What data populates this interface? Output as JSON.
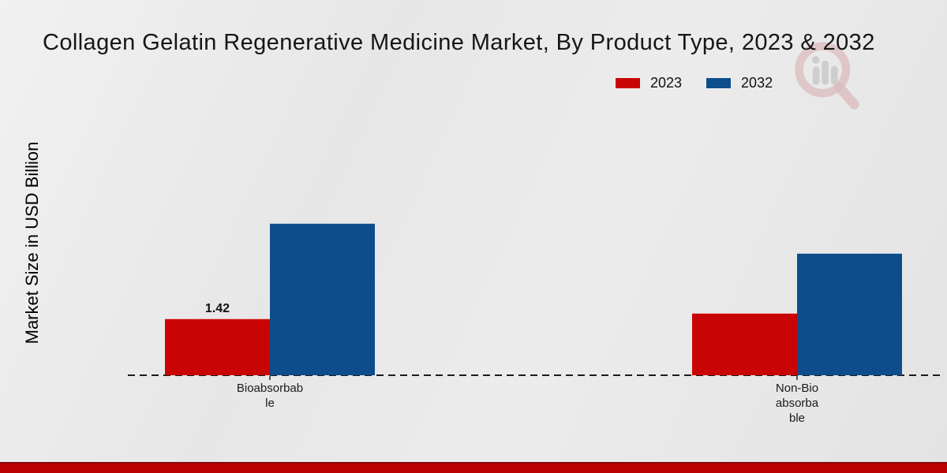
{
  "title": "Collagen Gelatin Regenerative Medicine Market, By Product Type, 2023 & 2032",
  "ylabel": "Market Size in USD Billion",
  "legend": [
    {
      "label": "2023",
      "color": "#c90404"
    },
    {
      "label": "2032",
      "color": "#0d4d8c"
    }
  ],
  "watermark_name": "market-research-magnifier-logo",
  "colors": {
    "series_2023": "#c90404",
    "series_2032": "#0d4d8c",
    "footer_band": "#bb0202",
    "axis_line": "#1c1c1c"
  },
  "chart_data": {
    "type": "bar",
    "title": "Collagen Gelatin Regenerative Medicine Market, By Product Type, 2023 & 2032",
    "xlabel": "",
    "ylabel": "Market Size in USD Billion",
    "categories": [
      "Bioabsorbable",
      "Non-Bioabsorbable"
    ],
    "category_display": [
      "Bioabsorbab\nle",
      "Non-Bio\nabsorba\nble"
    ],
    "series": [
      {
        "name": "2023",
        "color": "#c90404",
        "values": [
          1.42,
          1.56
        ],
        "data_labels": [
          "1.42",
          ""
        ]
      },
      {
        "name": "2032",
        "color": "#0d4d8c",
        "values": [
          3.8,
          3.05
        ],
        "data_labels": [
          "",
          ""
        ]
      }
    ],
    "ylim": [
      0,
      4.5
    ],
    "grid": false,
    "y_axis_ticks_visible": false,
    "legend_position": "top-right",
    "baseline_style": "dashed"
  }
}
